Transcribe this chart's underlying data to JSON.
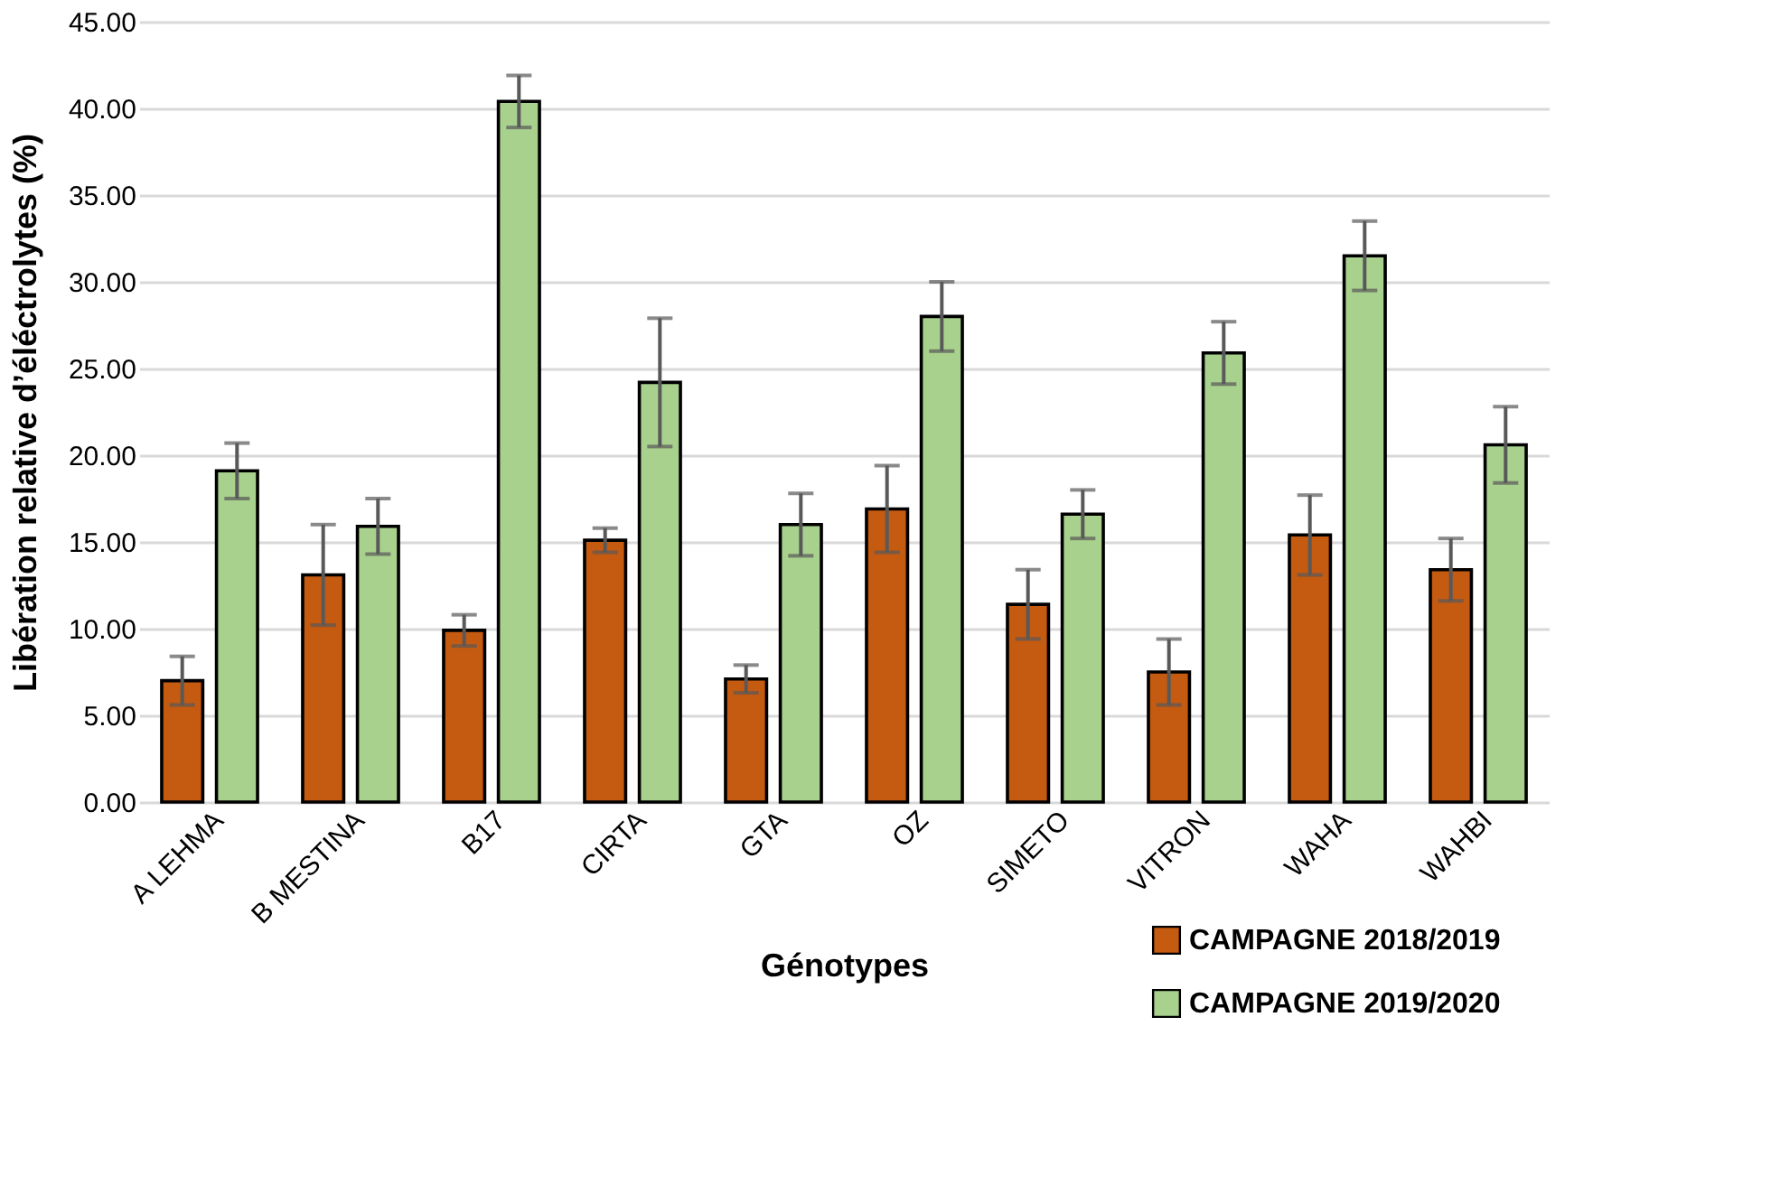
{
  "chart_data": {
    "type": "bar",
    "xlabel": "Génotypes",
    "ylabel": "Libération relative d’éléctrolytes (%)",
    "categories": [
      "A LEHMA",
      "B MESTINA",
      "B17",
      "CIRTA",
      "GTA",
      "OZ",
      "SIMETO",
      "VITRON",
      "WAHA",
      "WAHBI"
    ],
    "series": [
      {
        "name": "CAMPAGNE 2018/2019",
        "color": "#c55a11",
        "values": [
          7.0,
          13.1,
          9.9,
          15.1,
          7.1,
          16.9,
          11.4,
          7.5,
          15.4,
          13.4
        ],
        "errors": [
          1.4,
          2.9,
          0.9,
          0.7,
          0.8,
          2.5,
          2.0,
          1.9,
          2.3,
          1.8
        ]
      },
      {
        "name": "CAMPAGNE 2019/2020",
        "color": "#a9d18e",
        "values": [
          19.1,
          15.9,
          40.4,
          24.2,
          16.0,
          28.0,
          16.6,
          25.9,
          31.5,
          20.6
        ],
        "errors": [
          1.6,
          1.6,
          1.5,
          3.7,
          1.8,
          2.0,
          1.4,
          1.8,
          2.0,
          2.2
        ]
      }
    ],
    "ylim": [
      0,
      45
    ],
    "yticks": [
      {
        "value": 0,
        "label": "0.00"
      },
      {
        "value": 5,
        "label": "5.00"
      },
      {
        "value": 10,
        "label": "10.00"
      },
      {
        "value": 15,
        "label": "15.00"
      },
      {
        "value": 20,
        "label": "20.00"
      },
      {
        "value": 25,
        "label": "25.00"
      },
      {
        "value": 30,
        "label": "30.00"
      },
      {
        "value": 35,
        "label": "35.00"
      },
      {
        "value": 40,
        "label": "40.00"
      },
      {
        "value": 45,
        "label": "45.00"
      }
    ],
    "grid": "y",
    "legend": "bottom right"
  }
}
